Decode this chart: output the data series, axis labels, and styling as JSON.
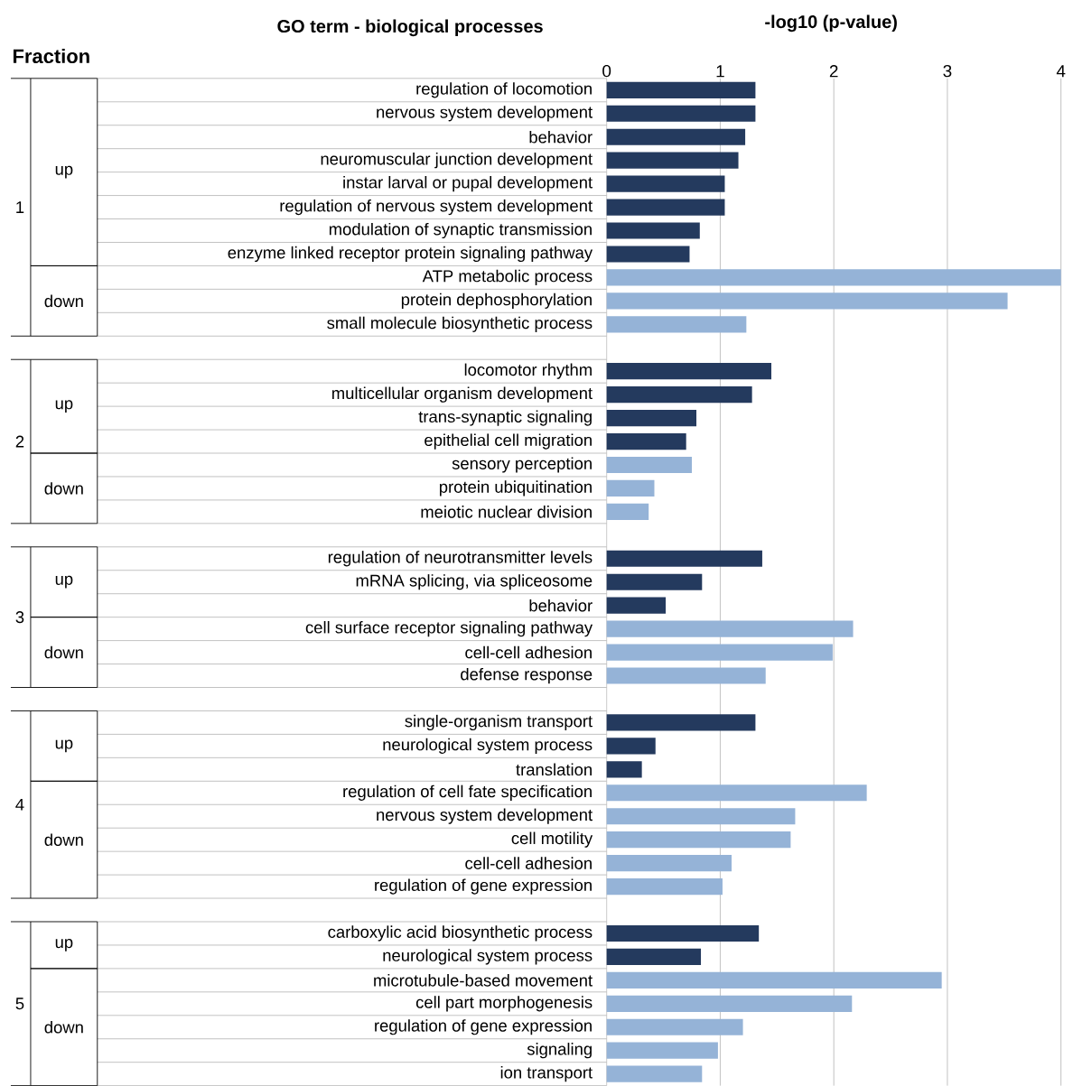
{
  "chart_data": {
    "type": "bar",
    "orientation": "horizontal",
    "title": "GO term - biological processes",
    "xlabel": "-log10 (p-value)",
    "categories": [
      "regulation of locomotion",
      "nervous system development",
      "behavior",
      "neuromuscular junction development",
      "instar larval or pupal development",
      "regulation of nervous system development",
      "modulation of synaptic transmission",
      "enzyme linked receptor protein signaling pathway",
      "ATP metabolic process",
      "protein dephosphorylation",
      "small molecule biosynthetic process",
      null,
      "locomotor rhythm",
      "multicellular organism development",
      "trans-synaptic signaling",
      "epithelial cell migration",
      "sensory perception",
      "protein ubiquitination",
      "meiotic nuclear division",
      null,
      "regulation of neurotransmitter levels",
      "mRNA splicing, via spliceosome",
      "behavior",
      "cell surface receptor signaling pathway",
      "cell-cell adhesion",
      "defense response",
      null,
      "single-organism transport",
      "neurological system process",
      "translation",
      "regulation of cell fate specification",
      "nervous system development",
      "cell motility",
      "cell-cell adhesion",
      "regulation of gene expression",
      null,
      "carboxylic acid biosynthetic process",
      "neurological system process",
      "microtubule-based movement",
      "cell part morphogenesis",
      "regulation of gene expression",
      "signaling",
      "ion transport"
    ],
    "values": [
      1.31,
      1.31,
      1.22,
      1.16,
      1.04,
      1.04,
      0.82,
      0.73,
      4.0,
      3.53,
      1.23,
      null,
      1.45,
      1.28,
      0.79,
      0.7,
      0.75,
      0.42,
      0.37,
      null,
      1.37,
      0.84,
      0.52,
      2.17,
      1.99,
      1.4,
      null,
      1.31,
      0.43,
      0.31,
      2.29,
      1.66,
      1.62,
      1.1,
      1.02,
      null,
      1.34,
      0.83,
      2.95,
      2.16,
      1.2,
      0.98,
      0.84
    ],
    "colors": [
      "#243a5e",
      "#243a5e",
      "#243a5e",
      "#243a5e",
      "#243a5e",
      "#243a5e",
      "#243a5e",
      "#243a5e",
      "#95b3d7",
      "#95b3d7",
      "#95b3d7",
      null,
      "#243a5e",
      "#243a5e",
      "#243a5e",
      "#243a5e",
      "#95b3d7",
      "#95b3d7",
      "#95b3d7",
      null,
      "#243a5e",
      "#243a5e",
      "#243a5e",
      "#95b3d7",
      "#95b3d7",
      "#95b3d7",
      null,
      "#243a5e",
      "#243a5e",
      "#243a5e",
      "#95b3d7",
      "#95b3d7",
      "#95b3d7",
      "#95b3d7",
      "#95b3d7",
      null,
      "#243a5e",
      "#243a5e",
      "#95b3d7",
      "#95b3d7",
      "#95b3d7",
      "#95b3d7",
      "#95b3d7"
    ],
    "xlim": [
      0,
      4
    ],
    "xticks": [
      0,
      1,
      2,
      3,
      4
    ],
    "grid": "x",
    "annotations": [
      "Fraction",
      "1",
      "up",
      "down",
      "2",
      "up",
      "down",
      "3",
      "up",
      "down",
      "4",
      "up",
      "down",
      "5",
      "up",
      "down"
    ]
  }
}
